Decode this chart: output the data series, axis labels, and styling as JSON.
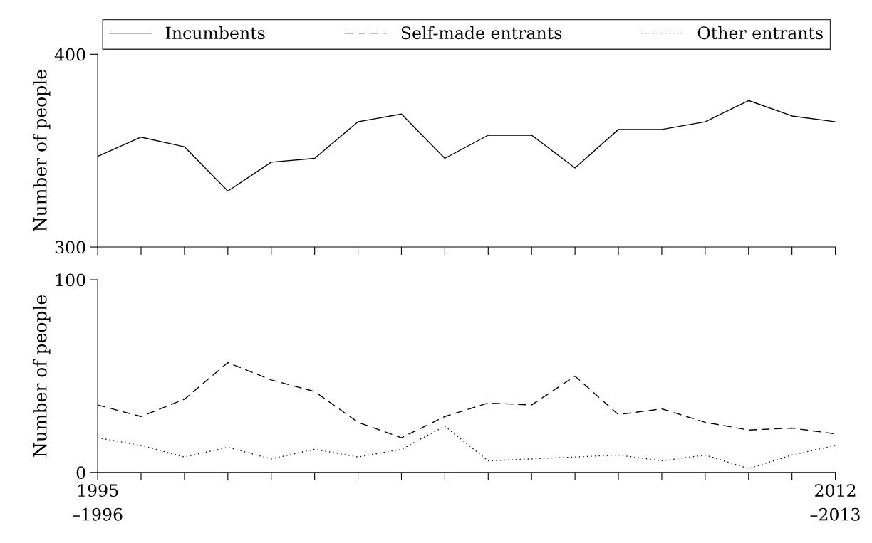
{
  "chart_data": [
    {
      "type": "line",
      "categories": [
        null,
        null,
        null,
        null,
        null,
        null,
        null,
        null,
        null,
        null,
        null,
        null,
        null,
        null,
        null,
        null,
        null,
        null
      ],
      "ylabel": "Number of people",
      "ylim": [
        300,
        400
      ],
      "yticks": [
        300,
        400
      ],
      "tick_labels": "y",
      "legend": "top",
      "grid": false,
      "series": [
        {
          "name": "Incumbents",
          "color": "#000000",
          "line_style": "solid",
          "values": [
            347,
            357,
            352,
            329,
            344,
            346,
            365,
            369,
            346,
            358,
            358,
            341,
            361,
            361,
            365,
            376,
            368,
            365
          ]
        }
      ]
    },
    {
      "type": "line",
      "categories": [
        "1995\n–1996",
        null,
        null,
        null,
        null,
        null,
        null,
        null,
        null,
        null,
        null,
        null,
        null,
        null,
        null,
        null,
        null,
        "2012\n–2013"
      ],
      "ylabel": "Number of people",
      "ylim": [
        0,
        100
      ],
      "yticks": [
        0,
        100
      ],
      "grid": false,
      "legend": "top",
      "series": [
        {
          "name": "Self-made entrants",
          "color": "#000000",
          "line_style": "dashed",
          "values": [
            35,
            29,
            38,
            57,
            48,
            42,
            26,
            18,
            29,
            36,
            35,
            50,
            30,
            33,
            26,
            22,
            23,
            20
          ]
        },
        {
          "name": "Other entrants",
          "color": "#000000",
          "line_style": "dotted",
          "values": [
            18,
            14,
            8,
            13,
            7,
            12,
            8,
            12,
            24,
            6,
            7,
            8,
            9,
            6,
            9,
            2,
            9,
            14
          ]
        }
      ]
    }
  ]
}
